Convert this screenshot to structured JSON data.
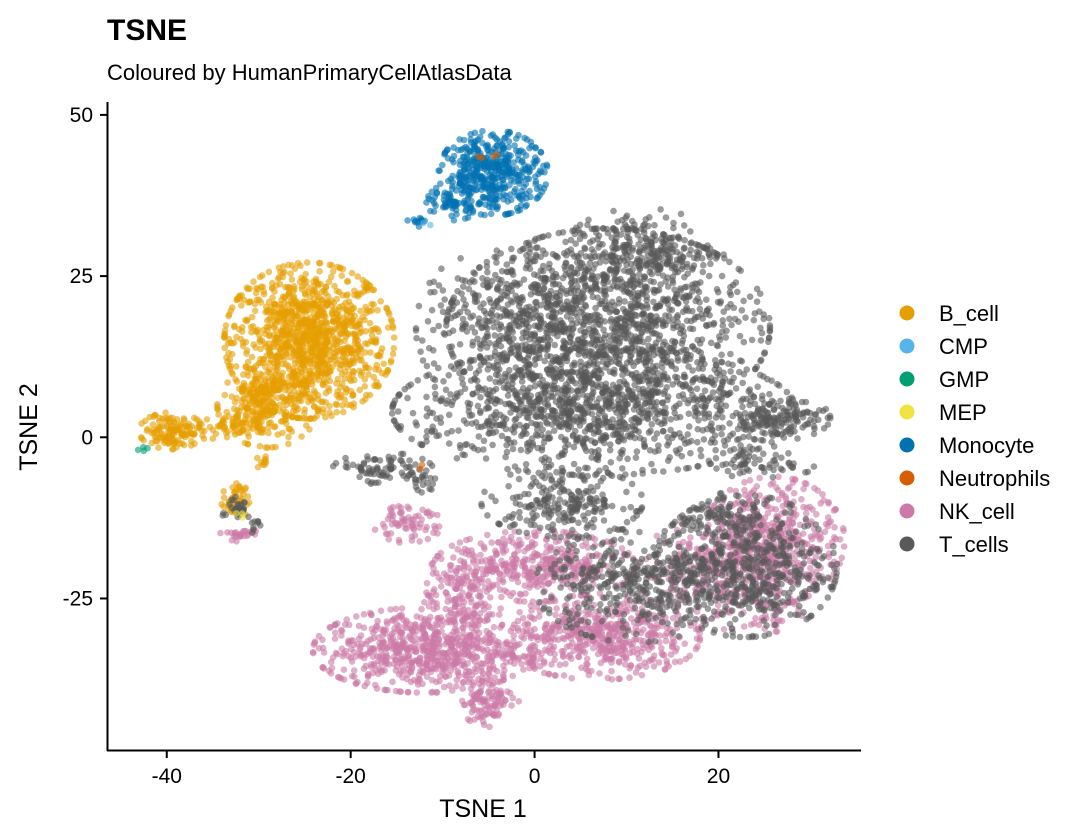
{
  "chart_data": {
    "type": "scatter",
    "title": "TSNE",
    "subtitle": "Coloured by HumanPrimaryCellAtlasData",
    "xlabel": "TSNE 1",
    "ylabel": "TSNE 2",
    "xlim": [
      -46.5,
      35.5
    ],
    "ylim": [
      -48.5,
      52
    ],
    "x_ticks": [
      {
        "value": -40,
        "label": "-40"
      },
      {
        "value": -20,
        "label": "-20"
      },
      {
        "value": 0,
        "label": "0"
      },
      {
        "value": 20,
        "label": "20"
      }
    ],
    "y_ticks": [
      {
        "value": -25,
        "label": "-25"
      },
      {
        "value": 0,
        "label": "0"
      },
      {
        "value": 25,
        "label": "25"
      },
      {
        "value": 50,
        "label": "50"
      }
    ],
    "grid": false,
    "legend": {
      "position": "right",
      "entries": [
        {
          "label": "B_cell",
          "color": "#E69F00"
        },
        {
          "label": "CMP",
          "color": "#56B4E9"
        },
        {
          "label": "GMP",
          "color": "#009E73"
        },
        {
          "label": "MEP",
          "color": "#F0E442"
        },
        {
          "label": "Monocyte",
          "color": "#0072B2"
        },
        {
          "label": "Neutrophils",
          "color": "#D55E00"
        },
        {
          "label": "NK_cell",
          "color": "#CC79A7"
        },
        {
          "label": "T_cells",
          "color": "#595959"
        }
      ]
    },
    "series": [
      {
        "label": "B_cell",
        "color": "#E69F00",
        "clusters": [
          {
            "cx": -24.5,
            "cy": 15,
            "sx": 4.2,
            "sy": 5.5,
            "n": 1100
          },
          {
            "cx": -29,
            "cy": 5,
            "sx": 2.5,
            "sy": 3,
            "n": 260
          },
          {
            "cx": -39.5,
            "cy": 1,
            "sx": 1.6,
            "sy": 1.3,
            "n": 130
          },
          {
            "cx": -33.5,
            "cy": 1.5,
            "sx": 1.8,
            "sy": 1,
            "n": 60
          },
          {
            "cx": -32.5,
            "cy": -10,
            "sx": 0.7,
            "sy": 1.4,
            "n": 45
          },
          {
            "cx": -29.5,
            "cy": -3.5,
            "sx": 0.35,
            "sy": 0.8,
            "n": 10
          }
        ]
      },
      {
        "label": "CMP",
        "color": "#56B4E9",
        "clusters": [
          {
            "cx": -12,
            "cy": 33,
            "sx": 0.3,
            "sy": 0.3,
            "n": 2
          }
        ]
      },
      {
        "label": "GMP",
        "color": "#009E73",
        "clusters": [
          {
            "cx": -42.5,
            "cy": -1.8,
            "sx": 0.3,
            "sy": 0.2,
            "n": 4
          }
        ]
      },
      {
        "label": "MEP",
        "color": "#F0E442",
        "clusters": [
          {
            "cx": -32,
            "cy": -12,
            "sx": 0.5,
            "sy": 0.5,
            "n": 3
          }
        ]
      },
      {
        "label": "Monocyte",
        "color": "#0072B2",
        "clusters": [
          {
            "cx": -4.5,
            "cy": 41,
            "sx": 2.7,
            "sy": 3,
            "n": 430
          },
          {
            "cx": -9,
            "cy": 36.5,
            "sx": 1.5,
            "sy": 1.3,
            "n": 60
          },
          {
            "cx": -12.5,
            "cy": 33.5,
            "sx": 0.6,
            "sy": 0.5,
            "n": 12
          }
        ]
      },
      {
        "label": "Neutrophils",
        "color": "#D55E00",
        "clusters": [
          {
            "cx": -5,
            "cy": 44,
            "sx": 0.8,
            "sy": 0.6,
            "n": 4
          },
          {
            "cx": -12.5,
            "cy": -4.5,
            "sx": 0.3,
            "sy": 0.3,
            "n": 2
          }
        ]
      },
      {
        "label": "NK_cell",
        "color": "#CC79A7",
        "clusters": [
          {
            "cx": -12,
            "cy": -33,
            "sx": 5.5,
            "sy": 3,
            "n": 650
          },
          {
            "cx": -8,
            "cy": -25,
            "sx": 2,
            "sy": 3.5,
            "n": 160
          },
          {
            "cx": -5,
            "cy": -40.5,
            "sx": 1.5,
            "sy": 2,
            "n": 110
          },
          {
            "cx": 7,
            "cy": -31,
            "sx": 5,
            "sy": 3,
            "n": 500
          },
          {
            "cx": 0,
            "cy": -20,
            "sx": 5,
            "sy": 2.5,
            "n": 380
          },
          {
            "cx": 26,
            "cy": -16,
            "sx": 3.5,
            "sy": 4.5,
            "n": 450
          },
          {
            "cx": 20,
            "cy": -21,
            "sx": 4,
            "sy": 4,
            "n": 280
          },
          {
            "cx": -14,
            "cy": -13.5,
            "sx": 1.8,
            "sy": 1.3,
            "n": 70
          },
          {
            "cx": -32,
            "cy": -15,
            "sx": 1,
            "sy": 0.6,
            "n": 25
          },
          {
            "cx": 26.5,
            "cy": -27.5,
            "sx": 1.2,
            "sy": 1.2,
            "n": 25
          }
        ]
      },
      {
        "label": "T_cells",
        "color": "#595959",
        "clusters": [
          {
            "cx": 8,
            "cy": 17,
            "sx": 8,
            "sy": 7,
            "n": 1300
          },
          {
            "cx": 6.5,
            "cy": 4,
            "sx": 10,
            "sy": 4.5,
            "n": 950
          },
          {
            "cx": -3,
            "cy": 17,
            "sx": 4.5,
            "sy": 6,
            "n": 320
          },
          {
            "cx": 12,
            "cy": 29,
            "sx": 4,
            "sy": 3,
            "n": 260
          },
          {
            "cx": 26,
            "cy": 3,
            "sx": 2.8,
            "sy": 1.6,
            "n": 150
          },
          {
            "cx": 23,
            "cy": -20,
            "sx": 4.5,
            "sy": 5,
            "n": 550
          },
          {
            "cx": 11,
            "cy": -23,
            "sx": 5,
            "sy": 4,
            "n": 400
          },
          {
            "cx": 3,
            "cy": -10,
            "sx": 4,
            "sy": 2.5,
            "n": 230
          },
          {
            "cx": -16.5,
            "cy": -5,
            "sx": 2.5,
            "sy": 1.2,
            "n": 80
          },
          {
            "cx": -12.5,
            "cy": -7,
            "sx": 1,
            "sy": 1,
            "n": 20
          },
          {
            "cx": 25,
            "cy": -4,
            "sx": 2.5,
            "sy": 1.2,
            "n": 60
          },
          {
            "cx": -32.5,
            "cy": -11,
            "sx": 0.7,
            "sy": 1.3,
            "n": 30
          },
          {
            "cx": -30.5,
            "cy": -13.5,
            "sx": 0.6,
            "sy": 0.6,
            "n": 10
          },
          {
            "cx": 20,
            "cy": -12,
            "sx": 2,
            "sy": 1.5,
            "n": 60
          }
        ]
      }
    ]
  }
}
